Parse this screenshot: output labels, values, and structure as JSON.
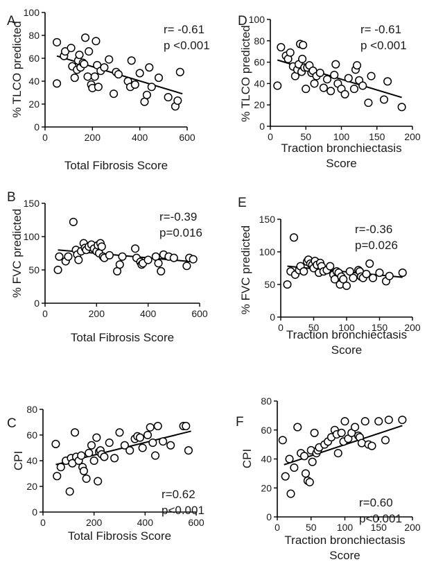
{
  "chart_data": [
    {
      "id": "A",
      "type": "scatter",
      "panel_label": "A",
      "xlabel": "Total Fibrosis Score",
      "ylabel": "% TLCO predicted",
      "xlim": [
        0,
        600
      ],
      "ylim": [
        0,
        100
      ],
      "xticks": [
        0,
        200,
        400,
        600
      ],
      "yticks": [
        0,
        20,
        40,
        60,
        80,
        100
      ],
      "stats": [
        "r= -0.61",
        "p <0.001"
      ],
      "fit": {
        "x": [
          50,
          580
        ],
        "y": [
          62,
          29
        ]
      },
      "points": [
        [
          50,
          38
        ],
        [
          50,
          74
        ],
        [
          80,
          62
        ],
        [
          85,
          66
        ],
        [
          110,
          69
        ],
        [
          115,
          53
        ],
        [
          125,
          43
        ],
        [
          135,
          50
        ],
        [
          140,
          58
        ],
        [
          145,
          63
        ],
        [
          150,
          52
        ],
        [
          160,
          56
        ],
        [
          165,
          55
        ],
        [
          170,
          78
        ],
        [
          180,
          44
        ],
        [
          185,
          66
        ],
        [
          195,
          37
        ],
        [
          200,
          34
        ],
        [
          210,
          44
        ],
        [
          215,
          75
        ],
        [
          220,
          54
        ],
        [
          225,
          35
        ],
        [
          235,
          49
        ],
        [
          250,
          52
        ],
        [
          270,
          59
        ],
        [
          290,
          29
        ],
        [
          300,
          48
        ],
        [
          310,
          46
        ],
        [
          350,
          40
        ],
        [
          360,
          35
        ],
        [
          365,
          58
        ],
        [
          380,
          37
        ],
        [
          400,
          47
        ],
        [
          420,
          22
        ],
        [
          430,
          28
        ],
        [
          440,
          52
        ],
        [
          450,
          35
        ],
        [
          480,
          43
        ],
        [
          520,
          26
        ],
        [
          550,
          18
        ],
        [
          560,
          23
        ],
        [
          570,
          48
        ]
      ]
    },
    {
      "id": "D",
      "type": "scatter",
      "panel_label": "D",
      "xlabel": "Traction bronchiectasis Score",
      "ylabel": "% TLCO predicted",
      "xlim": [
        0,
        200
      ],
      "ylim": [
        0,
        100
      ],
      "xticks": [
        0,
        50,
        100,
        150,
        200
      ],
      "yticks": [
        0,
        20,
        40,
        60,
        80,
        100
      ],
      "stats": [
        "r= -0.61",
        "p <0.001"
      ],
      "fit": {
        "x": [
          10,
          185
        ],
        "y": [
          62,
          27
        ]
      },
      "points": [
        [
          10,
          38
        ],
        [
          15,
          74
        ],
        [
          22,
          66
        ],
        [
          25,
          63
        ],
        [
          28,
          69
        ],
        [
          32,
          56
        ],
        [
          35,
          47
        ],
        [
          38,
          53
        ],
        [
          40,
          58
        ],
        [
          42,
          77
        ],
        [
          44,
          51
        ],
        [
          45,
          63
        ],
        [
          46,
          76
        ],
        [
          48,
          55
        ],
        [
          50,
          35
        ],
        [
          52,
          55
        ],
        [
          55,
          57
        ],
        [
          58,
          50
        ],
        [
          60,
          52
        ],
        [
          62,
          40
        ],
        [
          65,
          47
        ],
        [
          70,
          50
        ],
        [
          75,
          36
        ],
        [
          80,
          44
        ],
        [
          85,
          33
        ],
        [
          90,
          48
        ],
        [
          92,
          58
        ],
        [
          95,
          40
        ],
        [
          100,
          35
        ],
        [
          105,
          30
        ],
        [
          110,
          45
        ],
        [
          118,
          35
        ],
        [
          120,
          53
        ],
        [
          122,
          57
        ],
        [
          125,
          43
        ],
        [
          130,
          38
        ],
        [
          138,
          22
        ],
        [
          142,
          47
        ],
        [
          160,
          25
        ],
        [
          165,
          42
        ],
        [
          185,
          18
        ]
      ]
    },
    {
      "id": "B",
      "type": "scatter",
      "panel_label": "B",
      "xlabel": "Total Fibrosis Score",
      "ylabel": "% FVC predicted",
      "xlim": [
        0,
        600
      ],
      "ylim": [
        0,
        150
      ],
      "xticks": [
        0,
        200,
        400,
        600
      ],
      "yticks": [
        0,
        50,
        100,
        150
      ],
      "stats": [
        "r=-0.39",
        "p=0.016"
      ],
      "fit": {
        "x": [
          50,
          580
        ],
        "y": [
          80,
          62
        ]
      },
      "points": [
        [
          50,
          50
        ],
        [
          55,
          70
        ],
        [
          80,
          63
        ],
        [
          90,
          70
        ],
        [
          110,
          122
        ],
        [
          120,
          80
        ],
        [
          125,
          73
        ],
        [
          130,
          65
        ],
        [
          140,
          78
        ],
        [
          150,
          90
        ],
        [
          155,
          83
        ],
        [
          160,
          80
        ],
        [
          170,
          85
        ],
        [
          180,
          88
        ],
        [
          190,
          82
        ],
        [
          200,
          78
        ],
        [
          205,
          87
        ],
        [
          210,
          75
        ],
        [
          215,
          90
        ],
        [
          220,
          85
        ],
        [
          225,
          70
        ],
        [
          230,
          68
        ],
        [
          250,
          72
        ],
        [
          280,
          48
        ],
        [
          290,
          58
        ],
        [
          300,
          70
        ],
        [
          350,
          82
        ],
        [
          355,
          68
        ],
        [
          370,
          62
        ],
        [
          375,
          58
        ],
        [
          380,
          60
        ],
        [
          400,
          65
        ],
        [
          430,
          70
        ],
        [
          440,
          60
        ],
        [
          450,
          48
        ],
        [
          460,
          73
        ],
        [
          480,
          70
        ],
        [
          500,
          68
        ],
        [
          550,
          56
        ],
        [
          560,
          68
        ],
        [
          575,
          66
        ]
      ]
    },
    {
      "id": "E",
      "type": "scatter",
      "panel_label": "E",
      "xlabel": "Traction bronchiectasis Score",
      "ylabel": "% FVC predicted",
      "xlim": [
        0,
        200
      ],
      "ylim": [
        0,
        150
      ],
      "xticks": [
        0,
        50,
        100,
        150,
        200
      ],
      "yticks": [
        0,
        50,
        100,
        150
      ],
      "stats": [
        "r=-0.36",
        "p=0.026"
      ],
      "fit": {
        "x": [
          10,
          185
        ],
        "y": [
          78,
          61
        ]
      },
      "points": [
        [
          10,
          50
        ],
        [
          15,
          70
        ],
        [
          20,
          122
        ],
        [
          22,
          65
        ],
        [
          28,
          72
        ],
        [
          30,
          78
        ],
        [
          35,
          70
        ],
        [
          40,
          85
        ],
        [
          42,
          88
        ],
        [
          45,
          82
        ],
        [
          48,
          80
        ],
        [
          50,
          75
        ],
        [
          52,
          86
        ],
        [
          55,
          80
        ],
        [
          58,
          68
        ],
        [
          60,
          83
        ],
        [
          62,
          78
        ],
        [
          65,
          70
        ],
        [
          70,
          72
        ],
        [
          75,
          78
        ],
        [
          80,
          65
        ],
        [
          82,
          58
        ],
        [
          85,
          70
        ],
        [
          88,
          68
        ],
        [
          90,
          50
        ],
        [
          92,
          62
        ],
        [
          95,
          58
        ],
        [
          100,
          48
        ],
        [
          105,
          70
        ],
        [
          110,
          60
        ],
        [
          118,
          72
        ],
        [
          120,
          70
        ],
        [
          122,
          62
        ],
        [
          125,
          60
        ],
        [
          130,
          66
        ],
        [
          135,
          82
        ],
        [
          140,
          60
        ],
        [
          150,
          68
        ],
        [
          160,
          55
        ],
        [
          165,
          63
        ],
        [
          185,
          68
        ]
      ]
    },
    {
      "id": "C",
      "type": "scatter",
      "panel_label": "C",
      "xlabel": "Total Fibrosis Score",
      "ylabel": "CPI",
      "xlim": [
        0,
        600
      ],
      "ylim": [
        0,
        80
      ],
      "xticks": [
        0,
        200,
        400,
        600
      ],
      "yticks": [
        0,
        20,
        40,
        60,
        80
      ],
      "stats": [
        "r=0.62",
        "p<0.001"
      ],
      "fit": {
        "x": [
          50,
          580
        ],
        "y": [
          37,
          63
        ]
      },
      "points": [
        [
          50,
          53
        ],
        [
          55,
          28
        ],
        [
          70,
          35
        ],
        [
          90,
          40
        ],
        [
          105,
          16
        ],
        [
          110,
          42
        ],
        [
          115,
          38
        ],
        [
          125,
          62
        ],
        [
          130,
          43
        ],
        [
          140,
          40
        ],
        [
          150,
          44
        ],
        [
          155,
          35
        ],
        [
          160,
          32
        ],
        [
          170,
          26
        ],
        [
          180,
          46
        ],
        [
          190,
          52
        ],
        [
          200,
          40
        ],
        [
          210,
          58
        ],
        [
          215,
          24
        ],
        [
          220,
          47
        ],
        [
          225,
          48
        ],
        [
          230,
          45
        ],
        [
          240,
          43
        ],
        [
          260,
          54
        ],
        [
          280,
          42
        ],
        [
          300,
          62
        ],
        [
          320,
          52
        ],
        [
          340,
          48
        ],
        [
          360,
          57
        ],
        [
          370,
          59
        ],
        [
          380,
          58
        ],
        [
          390,
          50
        ],
        [
          410,
          60
        ],
        [
          420,
          66
        ],
        [
          430,
          54
        ],
        [
          440,
          44
        ],
        [
          450,
          67
        ],
        [
          470,
          55
        ],
        [
          500,
          52
        ],
        [
          550,
          67
        ],
        [
          560,
          67
        ],
        [
          570,
          48
        ]
      ]
    },
    {
      "id": "F",
      "type": "scatter",
      "panel_label": "F",
      "xlabel": "Traction bronchiectasis Score",
      "ylabel": "CPI",
      "xlim": [
        0,
        200
      ],
      "ylim": [
        0,
        80
      ],
      "xticks": [
        0,
        50,
        100,
        150,
        200
      ],
      "yticks": [
        0,
        20,
        40,
        60,
        80
      ],
      "stats": [
        "r=0.60",
        "p<0.001"
      ],
      "fit": {
        "x": [
          10,
          185
        ],
        "y": [
          36,
          63
        ]
      },
      "points": [
        [
          8,
          53
        ],
        [
          12,
          28
        ],
        [
          18,
          40
        ],
        [
          20,
          16
        ],
        [
          25,
          34
        ],
        [
          30,
          62
        ],
        [
          35,
          44
        ],
        [
          40,
          42
        ],
        [
          42,
          30
        ],
        [
          45,
          25
        ],
        [
          48,
          24
        ],
        [
          50,
          46
        ],
        [
          52,
          38
        ],
        [
          55,
          58
        ],
        [
          58,
          44
        ],
        [
          60,
          46
        ],
        [
          62,
          48
        ],
        [
          70,
          50
        ],
        [
          75,
          52
        ],
        [
          80,
          55
        ],
        [
          85,
          60
        ],
        [
          88,
          57
        ],
        [
          90,
          44
        ],
        [
          95,
          58
        ],
        [
          98,
          52
        ],
        [
          100,
          66
        ],
        [
          105,
          54
        ],
        [
          110,
          58
        ],
        [
          115,
          62
        ],
        [
          120,
          56
        ],
        [
          122,
          55
        ],
        [
          125,
          51
        ],
        [
          130,
          66
        ],
        [
          135,
          50
        ],
        [
          140,
          49
        ],
        [
          150,
          66
        ],
        [
          160,
          53
        ],
        [
          165,
          67
        ],
        [
          185,
          67
        ]
      ]
    }
  ]
}
